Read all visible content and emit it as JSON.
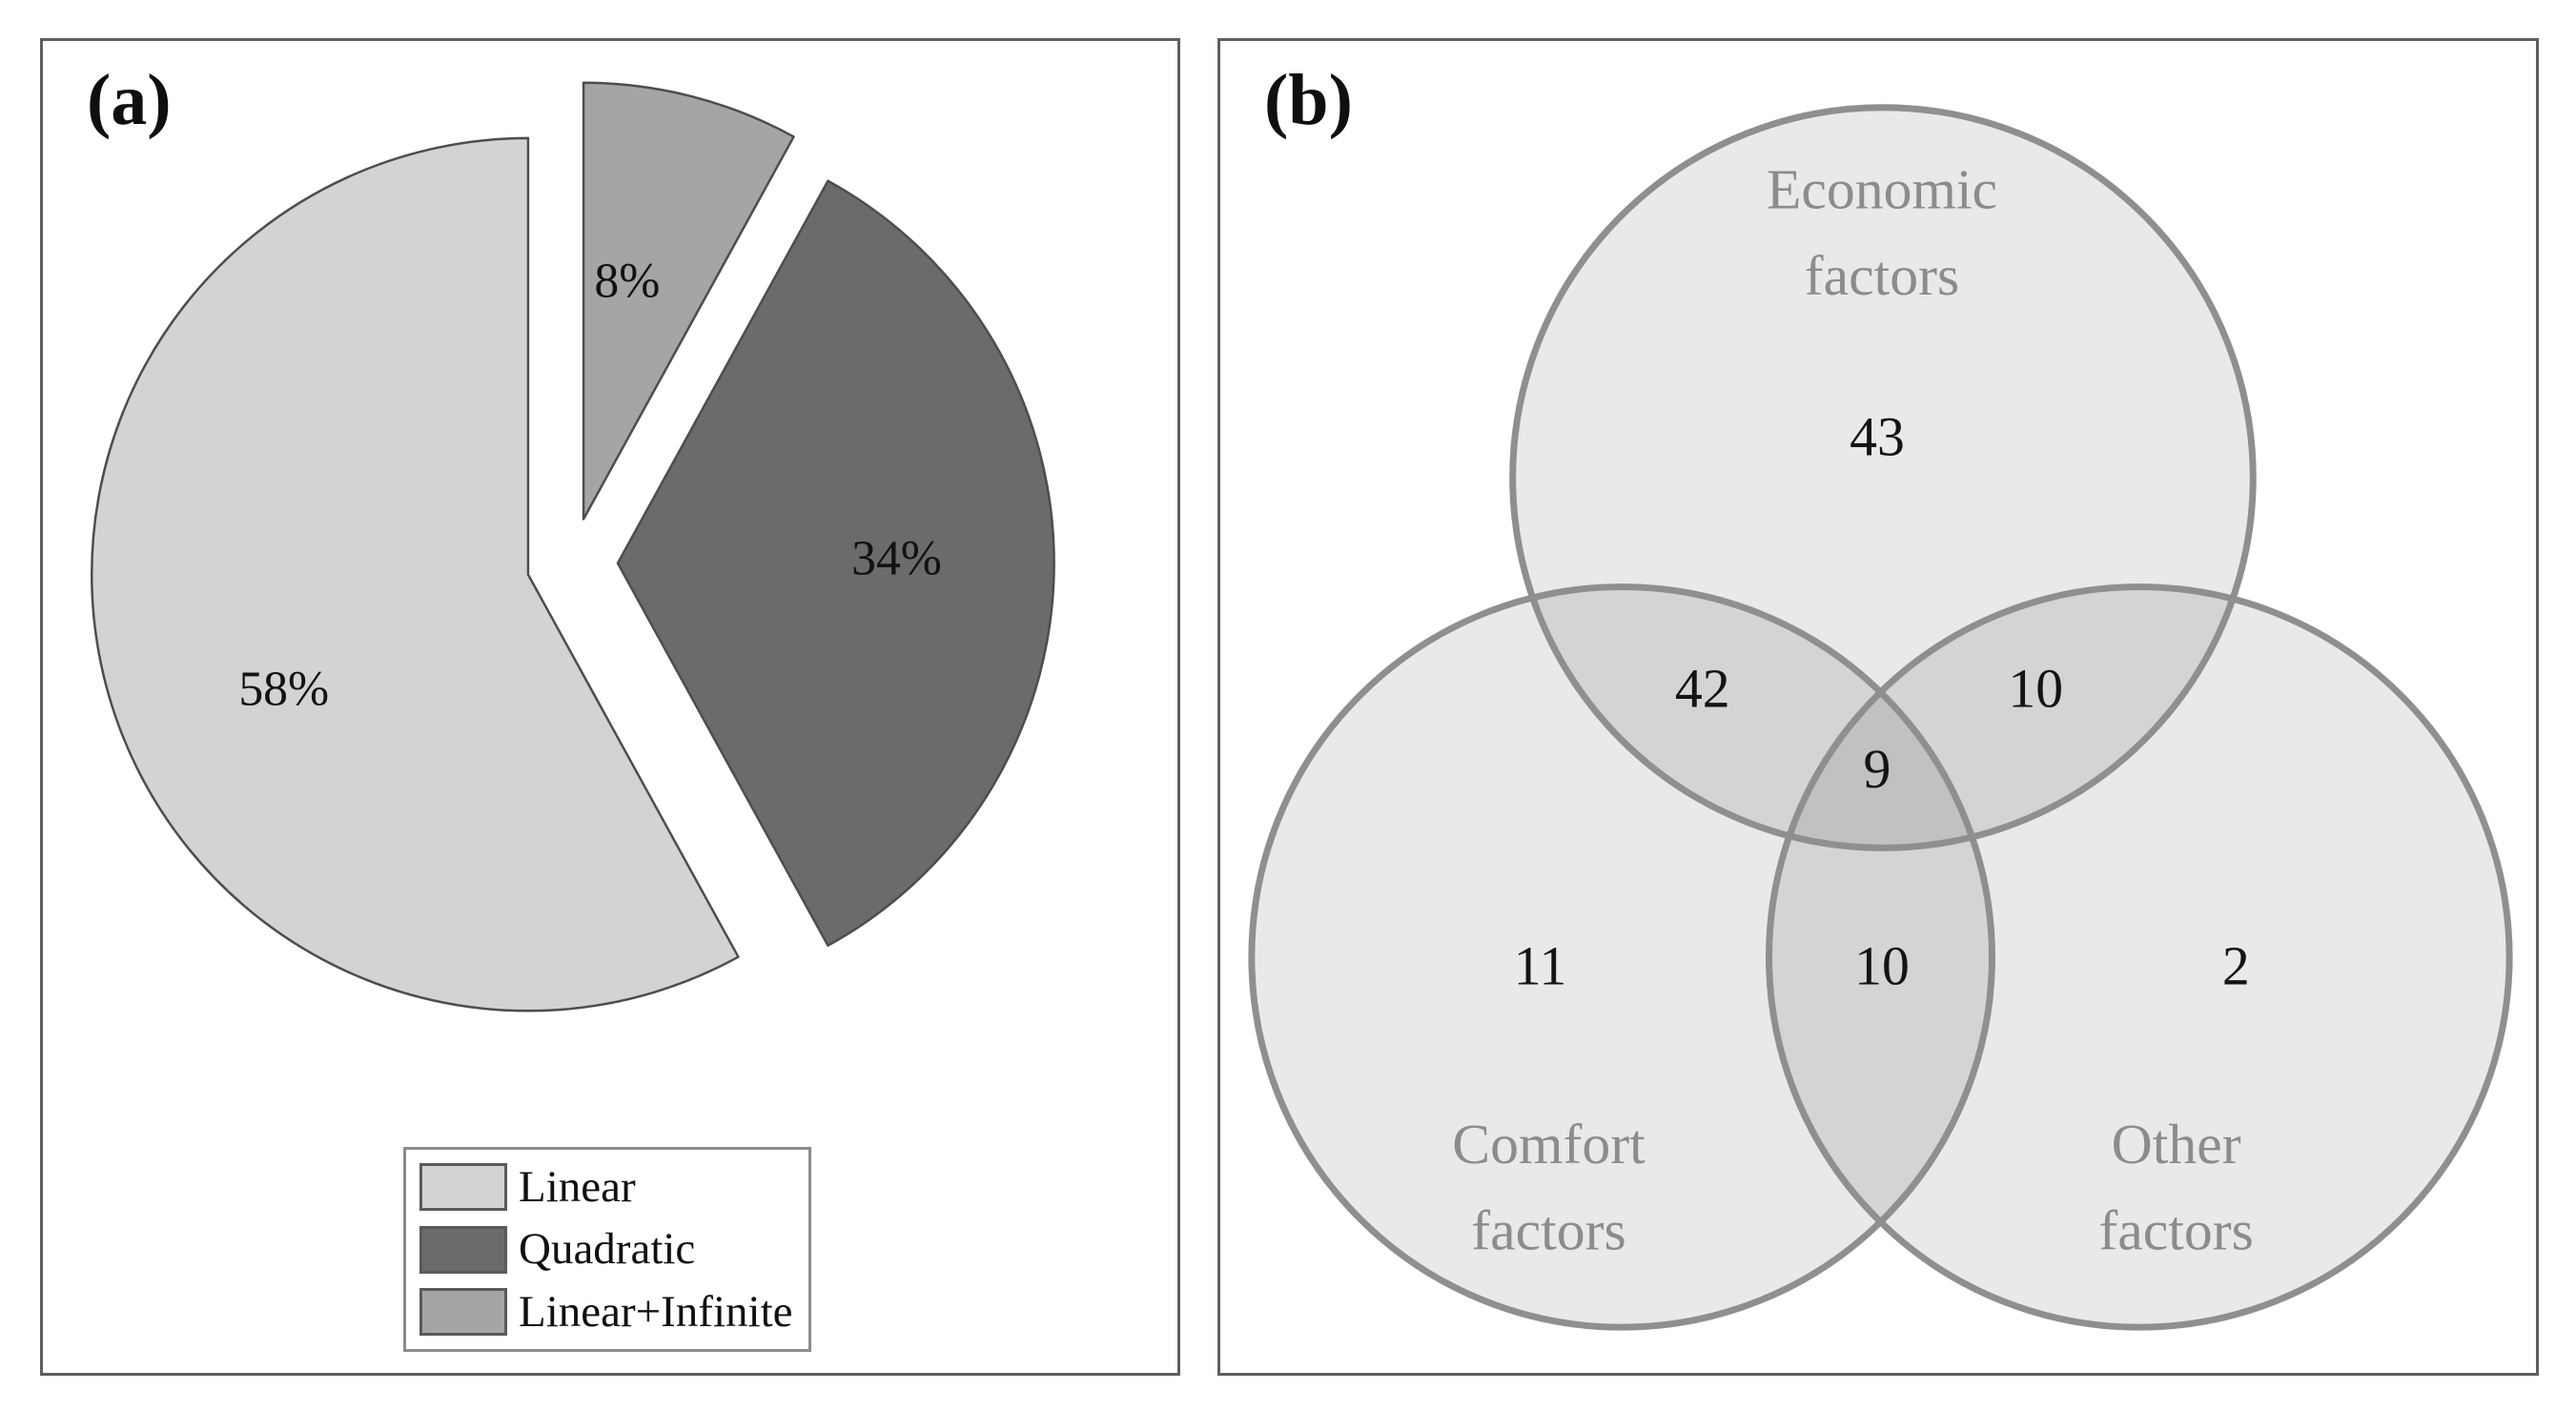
{
  "panel_a": {
    "label": "(a)"
  },
  "panel_b": {
    "label": "(b)"
  },
  "chart_data": [
    {
      "type": "pie",
      "panel": "a",
      "title": "",
      "exploded": true,
      "slices": [
        {
          "label": "Linear",
          "pct": 58,
          "color": "#d3d3d3"
        },
        {
          "label": "Quadratic",
          "pct": 34,
          "color": "#6b6b6b"
        },
        {
          "label": "Linear+Infinite",
          "pct": 8,
          "color": "#a5a5a5"
        }
      ],
      "draw_order_from_north_cw": [
        2,
        1,
        0
      ],
      "value_labels": [
        "58%",
        "34%",
        "8%"
      ],
      "legend_position": "bottom-center",
      "legend_items": [
        "Linear",
        "Quadratic",
        "Linear+Infinite"
      ]
    },
    {
      "type": "venn",
      "panel": "b",
      "title": "",
      "sets": [
        {
          "name": "Economic factors",
          "line1": "Economic",
          "line2": "factors"
        },
        {
          "name": "Comfort factors",
          "line1": "Comfort",
          "line2": "factors"
        },
        {
          "name": "Other factors",
          "line1": "Other",
          "line2": "factors"
        }
      ],
      "regions": {
        "economic_only": 43,
        "comfort_only": 11,
        "other_only": 2,
        "economic_and_comfort": 42,
        "economic_and_other": 10,
        "comfort_and_other": 10,
        "all_three": 9
      }
    }
  ]
}
